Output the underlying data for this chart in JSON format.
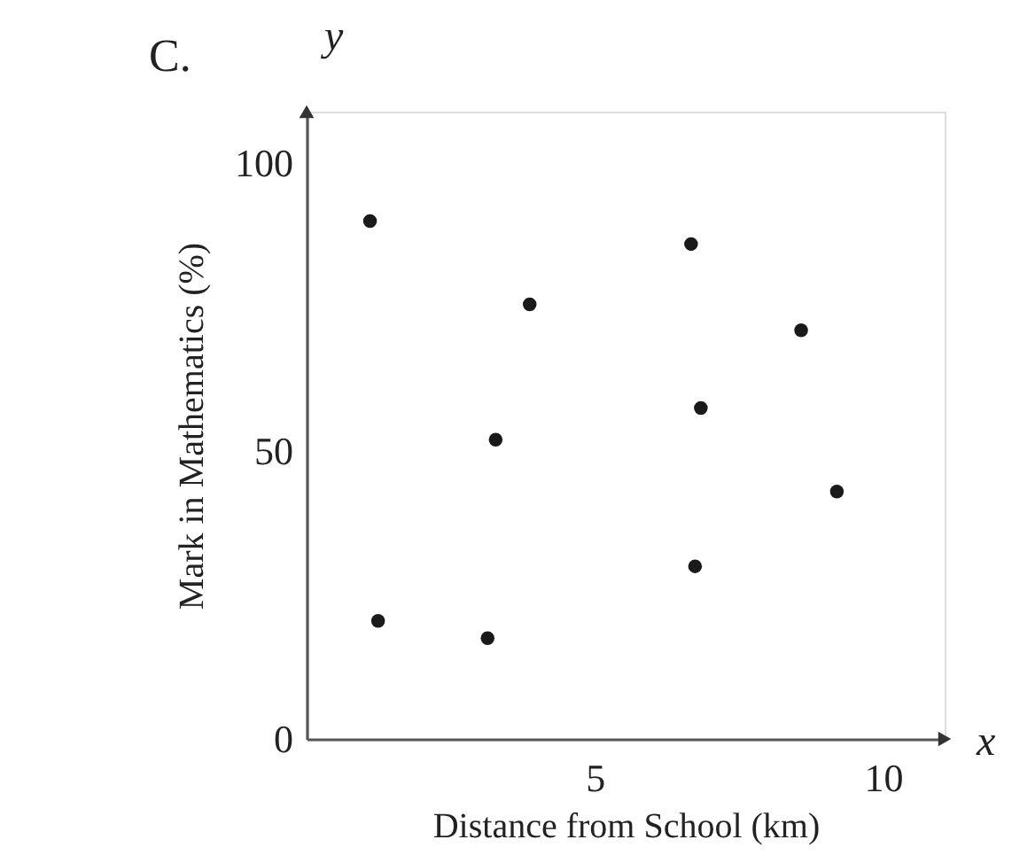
{
  "chart_data": {
    "type": "scatter",
    "xlabel": "Distance from School (km)",
    "ylabel": "Mark in Mathematics (%)",
    "annotations": [
      "C.",
      "y",
      "x"
    ],
    "x": [
      1.1,
      6.67,
      3.87,
      8.58,
      6.84,
      3.28,
      9.2,
      6.74,
      1.24,
      3.14
    ],
    "values": [
      90,
      86,
      75.5,
      71,
      57.5,
      52,
      43,
      30,
      20.5,
      17.5
    ],
    "color": "#1a1a1a",
    "marker": "circle",
    "xlim": [
      0,
      11.07
    ],
    "ylim": [
      0,
      109
    ],
    "xticks": [
      5,
      10
    ],
    "yticks": [
      0,
      50,
      100
    ],
    "grid": false
  }
}
